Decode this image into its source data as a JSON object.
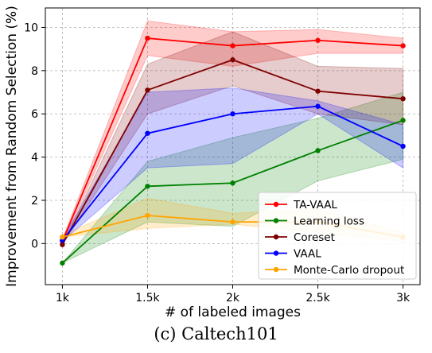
{
  "chart_data": {
    "type": "line",
    "xlabel": "# of labeled images",
    "ylabel": "Improvement from Random Selection (%)",
    "x": [
      1000,
      1500,
      2000,
      2500,
      3000
    ],
    "x_tick_labels": [
      "1k",
      "1.5k",
      "2k",
      "2.5k",
      "3k"
    ],
    "xlim": [
      900,
      3100
    ],
    "ylim": [
      -1.9,
      10.9
    ],
    "y_ticks": [
      0,
      2,
      4,
      6,
      8,
      10
    ],
    "grid": true,
    "legend_position": "lower-right",
    "series": [
      {
        "name": "TA-VAAL",
        "color": "#ff0000",
        "values": [
          0.1,
          9.5,
          9.15,
          9.4,
          9.15
        ],
        "lower": [
          0.0,
          8.7,
          8.2,
          8.8,
          8.8
        ],
        "upper": [
          0.2,
          10.3,
          9.8,
          9.9,
          9.5
        ]
      },
      {
        "name": "Learning loss",
        "color": "#008000",
        "values": [
          -0.9,
          2.65,
          2.8,
          4.3,
          5.7
        ],
        "lower": [
          -0.9,
          1.0,
          0.8,
          2.9,
          3.9
        ],
        "upper": [
          -0.9,
          3.8,
          4.9,
          5.8,
          7.0
        ]
      },
      {
        "name": "Coreset",
        "color": "#800000",
        "values": [
          -0.05,
          7.1,
          8.5,
          7.05,
          6.7
        ],
        "lower": [
          -0.05,
          6.0,
          7.3,
          6.0,
          5.5
        ],
        "upper": [
          -0.05,
          8.3,
          9.8,
          8.2,
          8.1
        ]
      },
      {
        "name": "VAAL",
        "color": "#0000ff",
        "values": [
          0.15,
          5.1,
          6.0,
          6.35,
          4.5
        ],
        "lower": [
          0.1,
          3.5,
          3.7,
          6.0,
          3.5
        ],
        "upper": [
          0.2,
          7.0,
          7.2,
          6.6,
          5.5
        ]
      },
      {
        "name": "Monte-Carlo dropout",
        "color": "#ffa500",
        "values": [
          0.3,
          1.3,
          1.0,
          1.0,
          0.3
        ],
        "lower": [
          0.3,
          0.7,
          0.9,
          0.5,
          0.1
        ],
        "upper": [
          0.4,
          2.1,
          1.4,
          1.6,
          0.5
        ]
      }
    ]
  },
  "caption": "(c) Caltech101"
}
